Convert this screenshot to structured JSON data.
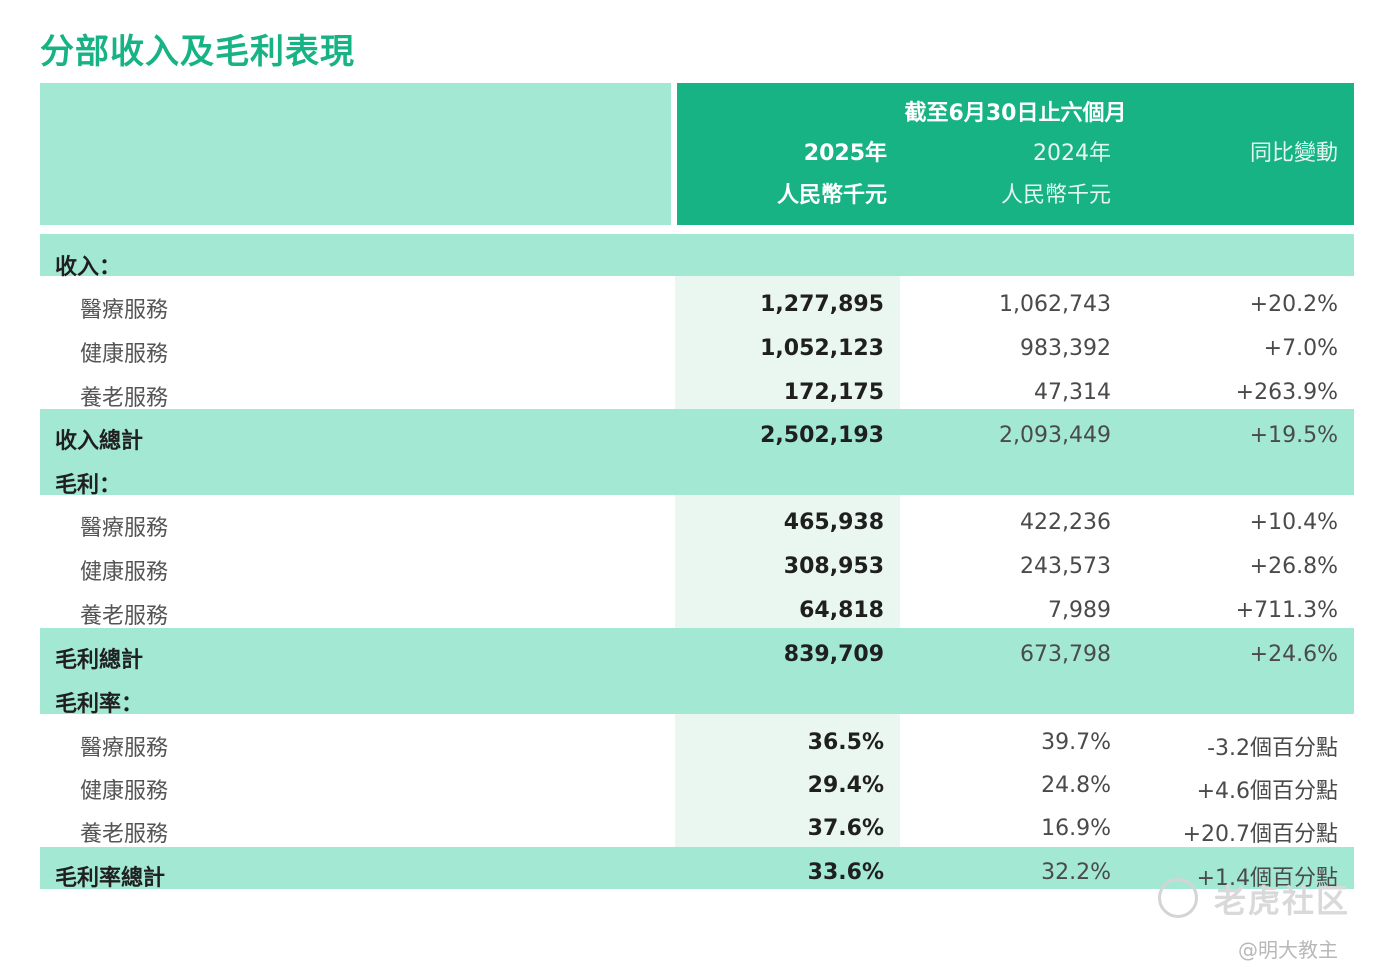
{
  "title": "分部收入及毛利表現",
  "header": {
    "period": "截至6月30日止六個月",
    "col1_year": "2025年",
    "col1_unit": "人民幣千元",
    "col2_year": "2024年",
    "col2_unit": "人民幣千元",
    "col3": "同比變動"
  },
  "sections": {
    "revenue": "收入：",
    "gross_profit": "毛利：",
    "margin": "毛利率："
  },
  "rows": [
    {
      "label": "醫療服務",
      "v2025": "1,277,895",
      "v2024": "1,062,743",
      "change": "+20.2%"
    },
    {
      "label": "健康服務",
      "v2025": "1,052,123",
      "v2024": "983,392",
      "change": "+7.0%"
    },
    {
      "label": "養老服務",
      "v2025": "172,175",
      "v2024": "47,314",
      "change": "+263.9%"
    },
    {
      "label": "收入總計",
      "v2025": "2,502,193",
      "v2024": "2,093,449",
      "change": "+19.5%"
    },
    {
      "label": "醫療服務",
      "v2025": "465,938",
      "v2024": "422,236",
      "change": "+10.4%"
    },
    {
      "label": "健康服務",
      "v2025": "308,953",
      "v2024": "243,573",
      "change": "+26.8%"
    },
    {
      "label": "養老服務",
      "v2025": "64,818",
      "v2024": "7,989",
      "change": "+711.3%"
    },
    {
      "label": "毛利總計",
      "v2025": "839,709",
      "v2024": "673,798",
      "change": "+24.6%"
    },
    {
      "label": "醫療服務",
      "v2025": "36.5%",
      "v2024": "39.7%",
      "change": "-3.2個百分點"
    },
    {
      "label": "健康服務",
      "v2025": "29.4%",
      "v2024": "24.8%",
      "change": "+4.6個百分點"
    },
    {
      "label": "養老服務",
      "v2025": "37.6%",
      "v2024": "16.9%",
      "change": "+20.7個百分點"
    },
    {
      "label": "毛利率總計",
      "v2025": "33.6%",
      "v2024": "32.2%",
      "change": "+1.4個百分點"
    }
  ],
  "watermark": {
    "brand": "老虎社区",
    "author": "@明大教主"
  },
  "colors": {
    "brand_green": "#17b384",
    "light_band": "#a3e8d3",
    "shade_column": "#eaf7f1"
  }
}
